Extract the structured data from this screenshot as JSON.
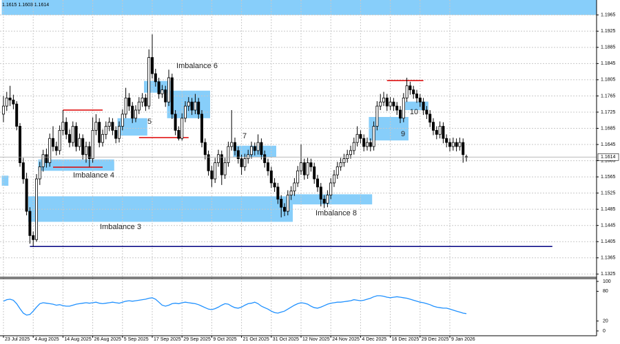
{
  "header": "1.1615 1.1603 1.1614",
  "chart_data": [
    {
      "type": "candlestick",
      "ylim": [
        1.1317,
        1.2002
      ],
      "yticks": [
        1.1965,
        1.1925,
        1.1885,
        1.1845,
        1.1805,
        1.1765,
        1.1725,
        1.1685,
        1.1645,
        1.1605,
        1.1565,
        1.1525,
        1.1485,
        1.1445,
        1.1405,
        1.1365,
        1.1325
      ],
      "xticks": [
        {
          "value": 0,
          "label": "23 Jul 2025"
        },
        {
          "value": 9,
          "label": "4 Aug 2025"
        },
        {
          "value": 18,
          "label": "14 Aug 2025"
        },
        {
          "value": 27,
          "label": "26 Aug 2025"
        },
        {
          "value": 36,
          "label": "5 Sep 2025"
        },
        {
          "value": 45,
          "label": "17 Sep 2025"
        },
        {
          "value": 54,
          "label": "29 Sep 2025"
        },
        {
          "value": 63,
          "label": "9 Oct 2025"
        },
        {
          "value": 72,
          "label": "21 Oct 2025"
        },
        {
          "value": 81,
          "label": "31 Oct 2025"
        },
        {
          "value": 90,
          "label": "12 Nov 2025"
        },
        {
          "value": 99,
          "label": "24 Nov 2025"
        },
        {
          "value": 108,
          "label": "4 Dec 2025"
        },
        {
          "value": 117,
          "label": "16 Dec 2025"
        },
        {
          "value": 126,
          "label": "29 Dec 2025"
        },
        {
          "value": 135,
          "label": "9 Jan 2026"
        }
      ],
      "grid": true,
      "up_color": "#ffffff",
      "down_color": "#000000",
      "zone_color": "#87cefa",
      "candles": [
        [
          1.172,
          1.1765,
          1.17,
          1.174
        ],
        [
          1.174,
          1.1775,
          1.1728,
          1.176
        ],
        [
          1.176,
          1.179,
          1.174,
          1.1755
        ],
        [
          1.1755,
          1.1768,
          1.1732,
          1.1745
        ],
        [
          1.1745,
          1.1752,
          1.168,
          1.169
        ],
        [
          1.169,
          1.1698,
          1.159,
          1.16
        ],
        [
          1.16,
          1.1612,
          1.1548,
          1.156
        ],
        [
          1.156,
          1.1575,
          1.147,
          1.148
        ],
        [
          1.148,
          1.149,
          1.14,
          1.142
        ],
        [
          1.142,
          1.143,
          1.1393,
          1.141
        ],
        [
          1.141,
          1.1572,
          1.1405,
          1.156
        ],
        [
          1.156,
          1.1602,
          1.1545,
          1.159
        ],
        [
          1.159,
          1.1632,
          1.1578,
          1.162
        ],
        [
          1.162,
          1.1635,
          1.1588,
          1.16
        ],
        [
          1.16,
          1.1672,
          1.159,
          1.166
        ],
        [
          1.166,
          1.169,
          1.1628,
          1.164
        ],
        [
          1.164,
          1.1652,
          1.1618,
          1.163
        ],
        [
          1.163,
          1.1692,
          1.162,
          1.168
        ],
        [
          1.168,
          1.173,
          1.1668,
          1.17
        ],
        [
          1.17,
          1.1712,
          1.1658,
          1.167
        ],
        [
          1.167,
          1.1682,
          1.1638,
          1.165
        ],
        [
          1.165,
          1.1702,
          1.164,
          1.169
        ],
        [
          1.169,
          1.17,
          1.1628,
          1.164
        ],
        [
          1.164,
          1.1672,
          1.163,
          1.166
        ],
        [
          1.166,
          1.167,
          1.1608,
          1.162
        ],
        [
          1.162,
          1.1652,
          1.16,
          1.164
        ],
        [
          1.164,
          1.1652,
          1.159,
          1.161
        ],
        [
          1.161,
          1.1712,
          1.16,
          1.168
        ],
        [
          1.168,
          1.172,
          1.1668,
          1.17
        ],
        [
          1.17,
          1.171,
          1.1638,
          1.165
        ],
        [
          1.165,
          1.1682,
          1.164,
          1.167
        ],
        [
          1.167,
          1.1702,
          1.1658,
          1.169
        ],
        [
          1.169,
          1.1712,
          1.1678,
          1.17
        ],
        [
          1.17,
          1.171,
          1.1668,
          1.168
        ],
        [
          1.168,
          1.169,
          1.1648,
          1.166
        ],
        [
          1.166,
          1.1702,
          1.165,
          1.169
        ],
        [
          1.169,
          1.1732,
          1.168,
          1.172
        ],
        [
          1.172,
          1.1785,
          1.171,
          1.176
        ],
        [
          1.176,
          1.1772,
          1.1728,
          1.174
        ],
        [
          1.174,
          1.175,
          1.1698,
          1.171
        ],
        [
          1.171,
          1.1742,
          1.17,
          1.173
        ],
        [
          1.173,
          1.1762,
          1.172,
          1.175
        ],
        [
          1.175,
          1.1772,
          1.1738,
          1.176
        ],
        [
          1.176,
          1.177,
          1.1728,
          1.174
        ],
        [
          1.174,
          1.188,
          1.1732,
          1.186
        ],
        [
          1.186,
          1.1917,
          1.1808,
          1.182
        ],
        [
          1.182,
          1.1832,
          1.1788,
          1.18
        ],
        [
          1.18,
          1.181,
          1.1758,
          1.177
        ],
        [
          1.177,
          1.1792,
          1.176,
          1.178
        ],
        [
          1.178,
          1.179,
          1.1738,
          1.175
        ],
        [
          1.175,
          1.183,
          1.174,
          1.181
        ],
        [
          1.181,
          1.182,
          1.1708,
          1.172
        ],
        [
          1.172,
          1.173,
          1.1668,
          1.168
        ],
        [
          1.168,
          1.169,
          1.1655,
          1.166
        ],
        [
          1.166,
          1.1722,
          1.1655,
          1.171
        ],
        [
          1.171,
          1.1752,
          1.17,
          1.174
        ],
        [
          1.174,
          1.1762,
          1.1728,
          1.175
        ],
        [
          1.175,
          1.176,
          1.1718,
          1.173
        ],
        [
          1.173,
          1.177,
          1.172,
          1.175
        ],
        [
          1.175,
          1.176,
          1.1708,
          1.172
        ],
        [
          1.172,
          1.173,
          1.1638,
          1.165
        ],
        [
          1.165,
          1.166,
          1.1608,
          1.162
        ],
        [
          1.162,
          1.163,
          1.1568,
          1.158
        ],
        [
          1.158,
          1.1592,
          1.154,
          1.156
        ],
        [
          1.156,
          1.1612,
          1.155,
          1.16
        ],
        [
          1.16,
          1.1632,
          1.159,
          1.162
        ],
        [
          1.162,
          1.163,
          1.1545,
          1.157
        ],
        [
          1.157,
          1.1612,
          1.156,
          1.16
        ],
        [
          1.16,
          1.1652,
          1.159,
          1.164
        ],
        [
          1.164,
          1.173,
          1.163,
          1.165
        ],
        [
          1.165,
          1.1662,
          1.1618,
          1.163
        ],
        [
          1.163,
          1.164,
          1.1598,
          1.161
        ],
        [
          1.161,
          1.162,
          1.157,
          1.159
        ],
        [
          1.159,
          1.1622,
          1.158,
          1.161
        ],
        [
          1.161,
          1.1632,
          1.1598,
          1.162
        ],
        [
          1.162,
          1.1652,
          1.161,
          1.164
        ],
        [
          1.164,
          1.165,
          1.1618,
          1.163
        ],
        [
          1.163,
          1.167,
          1.162,
          1.165
        ],
        [
          1.165,
          1.166,
          1.1608,
          1.162
        ],
        [
          1.162,
          1.163,
          1.1588,
          1.16
        ],
        [
          1.16,
          1.161,
          1.1568,
          1.158
        ],
        [
          1.158,
          1.159,
          1.1538,
          1.155
        ],
        [
          1.155,
          1.1562,
          1.1528,
          1.154
        ],
        [
          1.154,
          1.155,
          1.1498,
          1.151
        ],
        [
          1.151,
          1.152,
          1.1465,
          1.149
        ],
        [
          1.149,
          1.15,
          1.1468,
          1.148
        ],
        [
          1.148,
          1.1532,
          1.147,
          1.152
        ],
        [
          1.152,
          1.1542,
          1.1508,
          1.153
        ],
        [
          1.153,
          1.1562,
          1.1518,
          1.155
        ],
        [
          1.155,
          1.1592,
          1.154,
          1.158
        ],
        [
          1.158,
          1.1645,
          1.157,
          1.16
        ],
        [
          1.16,
          1.161,
          1.1558,
          1.157
        ],
        [
          1.157,
          1.1612,
          1.156,
          1.16
        ],
        [
          1.16,
          1.161,
          1.1578,
          1.159
        ],
        [
          1.159,
          1.16,
          1.1548,
          1.156
        ],
        [
          1.156,
          1.157,
          1.1528,
          1.154
        ],
        [
          1.154,
          1.155,
          1.1492,
          1.151
        ],
        [
          1.151,
          1.152,
          1.1488,
          1.15
        ],
        [
          1.15,
          1.1532,
          1.149,
          1.152
        ],
        [
          1.152,
          1.1562,
          1.151,
          1.155
        ],
        [
          1.155,
          1.1582,
          1.154,
          1.157
        ],
        [
          1.157,
          1.1602,
          1.156,
          1.159
        ],
        [
          1.159,
          1.1612,
          1.158,
          1.16
        ],
        [
          1.16,
          1.1622,
          1.159,
          1.161
        ],
        [
          1.161,
          1.1632,
          1.16,
          1.162
        ],
        [
          1.162,
          1.1642,
          1.161,
          1.163
        ],
        [
          1.163,
          1.1662,
          1.162,
          1.165
        ],
        [
          1.165,
          1.169,
          1.164,
          1.167
        ],
        [
          1.167,
          1.168,
          1.1648,
          1.166
        ],
        [
          1.166,
          1.167,
          1.1628,
          1.164
        ],
        [
          1.164,
          1.1662,
          1.163,
          1.165
        ],
        [
          1.165,
          1.166,
          1.1628,
          1.164
        ],
        [
          1.164,
          1.1702,
          1.163,
          1.169
        ],
        [
          1.169,
          1.1752,
          1.168,
          1.174
        ],
        [
          1.174,
          1.177,
          1.173,
          1.175
        ],
        [
          1.175,
          1.1775,
          1.174,
          1.176
        ],
        [
          1.176,
          1.177,
          1.1728,
          1.174
        ],
        [
          1.174,
          1.1762,
          1.173,
          1.175
        ],
        [
          1.175,
          1.176,
          1.1728,
          1.174
        ],
        [
          1.174,
          1.175,
          1.1718,
          1.173
        ],
        [
          1.173,
          1.174,
          1.1698,
          1.171
        ],
        [
          1.171,
          1.1772,
          1.17,
          1.176
        ],
        [
          1.176,
          1.181,
          1.175,
          1.179
        ],
        [
          1.179,
          1.18,
          1.1768,
          1.178
        ],
        [
          1.178,
          1.179,
          1.1758,
          1.177
        ],
        [
          1.177,
          1.178,
          1.1748,
          1.176
        ],
        [
          1.176,
          1.177,
          1.1738,
          1.175
        ],
        [
          1.175,
          1.176,
          1.1718,
          1.173
        ],
        [
          1.173,
          1.174,
          1.1708,
          1.172
        ],
        [
          1.172,
          1.173,
          1.1688,
          1.17
        ],
        [
          1.17,
          1.171,
          1.1668,
          1.168
        ],
        [
          1.168,
          1.169,
          1.1658,
          1.167
        ],
        [
          1.167,
          1.1702,
          1.166,
          1.169
        ],
        [
          1.169,
          1.17,
          1.1648,
          1.166
        ],
        [
          1.166,
          1.167,
          1.1638,
          1.165
        ],
        [
          1.165,
          1.166,
          1.1628,
          1.164
        ],
        [
          1.164,
          1.1662,
          1.163,
          1.165
        ],
        [
          1.165,
          1.166,
          1.1628,
          1.164
        ],
        [
          1.164,
          1.1662,
          1.163,
          1.165
        ],
        [
          1.165,
          1.166,
          1.16,
          1.162
        ],
        [
          1.1615,
          1.162,
          1.1603,
          1.1614
        ]
      ],
      "zones": [
        {
          "low": 1.1965,
          "high": 1.2002,
          "from": 0,
          "to": 179
        },
        {
          "low": 1.1543,
          "high": 1.1568,
          "from": 0,
          "to": 1
        },
        {
          "label": "Imbalance 3",
          "low": 1.1454,
          "high": 1.1517,
          "from": 8,
          "to": 87
        },
        {
          "label": "Imbalance 8",
          "low": 1.1497,
          "high": 1.1522,
          "from": 87,
          "to": 111
        },
        {
          "label": "Imbalance 4",
          "low": 1.158,
          "high": 1.1608,
          "from": 11,
          "to": 33
        },
        {
          "label": "5",
          "low": 1.1667,
          "high": 1.171,
          "from": 35,
          "to": 43
        },
        {
          "label": "Imbalance 6",
          "low": 1.171,
          "high": 1.1778,
          "from": 50,
          "to": 62
        },
        {
          "low": 1.1773,
          "high": 1.1802,
          "from": 43,
          "to": 50
        },
        {
          "label": "7",
          "low": 1.1614,
          "high": 1.1642,
          "from": 70,
          "to": 82
        },
        {
          "label": "9",
          "low": 1.1655,
          "high": 1.1713,
          "from": 111,
          "to": 122
        },
        {
          "label": "10",
          "low": 1.173,
          "high": 1.1751,
          "from": 122,
          "to": 128
        }
      ],
      "levels": [
        {
          "price": 1.1393,
          "from": 8,
          "to": 166,
          "color": "#000080"
        },
        {
          "price": 1.173,
          "from": 18,
          "to": 30,
          "color": "#dd0000"
        },
        {
          "price": 1.1589,
          "from": 15,
          "to": 30,
          "color": "#dd0000"
        },
        {
          "price": 1.1662,
          "from": 41,
          "to": 56,
          "color": "#dd0000"
        },
        {
          "price": 1.1803,
          "from": 116,
          "to": 127,
          "color": "#dd0000"
        }
      ]
    },
    {
      "type": "line",
      "color": "#1e90ff",
      "ylim": [
        0,
        100
      ],
      "yticks": [
        100,
        80,
        20,
        0
      ],
      "values": [
        60,
        63,
        64,
        62,
        55,
        45,
        36,
        32,
        33,
        40,
        48,
        55,
        57,
        56,
        55,
        54,
        52,
        53,
        51,
        50,
        50,
        52,
        54,
        55,
        56,
        57,
        56,
        57,
        58,
        56,
        55,
        56,
        57,
        58,
        57,
        56,
        58,
        60,
        61,
        60,
        61,
        62,
        63,
        64,
        66,
        67,
        64,
        58,
        52,
        50,
        52,
        55,
        56,
        55,
        57,
        58,
        57,
        56,
        55,
        53,
        50,
        47,
        44,
        43,
        45,
        48,
        52,
        55,
        54,
        50,
        47,
        46,
        48,
        52,
        55,
        56,
        58,
        55,
        50,
        47,
        44,
        40,
        37,
        36,
        38,
        40,
        44,
        48,
        52,
        55,
        57,
        56,
        54,
        50,
        47,
        46,
        48,
        51,
        54,
        56,
        57,
        58,
        58,
        59,
        60,
        61,
        63,
        62,
        61,
        62,
        64,
        66,
        69,
        71,
        71,
        70,
        68,
        67,
        68,
        69,
        68,
        67,
        66,
        64,
        62,
        60,
        58,
        57,
        55,
        53,
        50,
        48,
        47,
        46,
        46,
        44,
        42,
        40,
        38,
        36,
        35
      ]
    }
  ]
}
